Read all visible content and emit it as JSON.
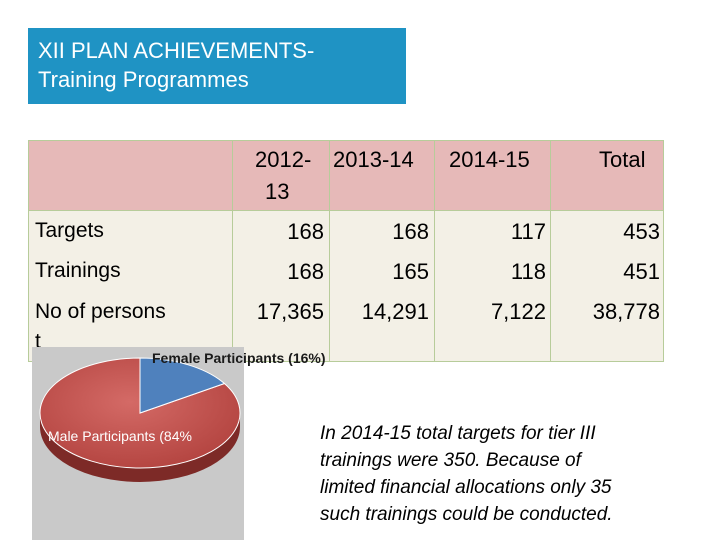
{
  "title": {
    "line1": "XII PLAN ACHIEVEMENTS-",
    "line2": "Training Programmes"
  },
  "table": {
    "headers": {
      "col1_line1": "2012-",
      "col1_line2": "13",
      "col2": "2013-14",
      "col3": "2014-15",
      "col4": "Total"
    },
    "rows": [
      {
        "label": "Targets",
        "values": [
          "168",
          "168",
          "117",
          "453"
        ]
      },
      {
        "label": "Trainings",
        "values": [
          "168",
          "165",
          "118",
          "451"
        ]
      },
      {
        "label_line1": "No of persons",
        "label_line2": "t",
        "values": [
          "17,365",
          "14,291",
          "7,122",
          "38,778"
        ]
      }
    ]
  },
  "pie": {
    "female_label": "Female Participants (16%)",
    "male_label": "Male Participants (84%",
    "female_percent": 16,
    "male_percent": 84,
    "colors": {
      "female": "#4f81bd",
      "male": "#c0504d"
    }
  },
  "note": {
    "lines": [
      "In 2014-15 total targets for tier III",
      "trainings were 350. Because of",
      "limited financial allocations only 35",
      "such trainings could be conducted."
    ]
  }
}
